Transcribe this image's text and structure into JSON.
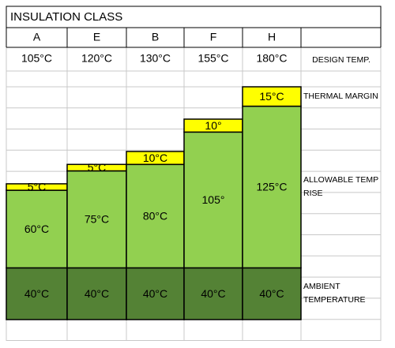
{
  "chart_data": {
    "type": "stacked-bar",
    "title": "INSULATION CLASS",
    "categories": [
      "A",
      "E",
      "B",
      "F",
      "H"
    ],
    "totals": [
      105,
      120,
      130,
      155,
      180
    ],
    "total_labels": [
      "105°C",
      "120°C",
      "130°C",
      "155°C",
      "180°C"
    ],
    "totals_name": "DESIGN TEMP.",
    "series": [
      {
        "name": "AMBIENT TEMPERATURE",
        "color": "#548235",
        "values": [
          40,
          40,
          40,
          40,
          40
        ],
        "value_labels": [
          "40°C",
          "40°C",
          "40°C",
          "40°C",
          "40°C"
        ]
      },
      {
        "name": "ALLOWABLE TEMP RISE",
        "color": "#92d050",
        "values": [
          60,
          75,
          80,
          105,
          125
        ],
        "value_labels": [
          "60°C",
          "75°C",
          "80°C",
          "105°",
          "125°C"
        ]
      },
      {
        "name": "THERMAL MARGIN",
        "color": "#ffff00",
        "values": [
          5,
          5,
          10,
          10,
          15
        ],
        "value_labels": [
          "5°C",
          "5°C",
          "10°C",
          "10°",
          "15°C"
        ]
      }
    ]
  }
}
